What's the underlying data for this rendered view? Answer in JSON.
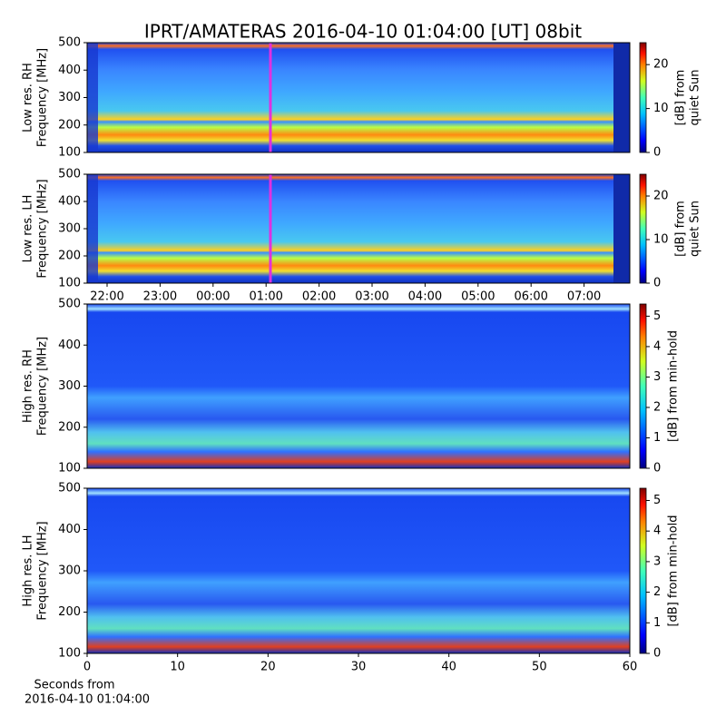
{
  "chart_data": [
    {
      "type": "heatmap",
      "title": "IPRT/AMATERAS 2016-04-10 01:04:00 [UT]   08bit",
      "ylabel": [
        "Low res. RH",
        "Frequency [MHz]"
      ],
      "ylim": [
        100,
        500
      ],
      "yticks": [
        100,
        200,
        300,
        400,
        500
      ],
      "colorbar_label": [
        "[dB] from",
        "quiet Sun"
      ],
      "clim": [
        0,
        25
      ],
      "cticks": [
        0,
        10,
        20
      ]
    },
    {
      "type": "heatmap",
      "ylabel": [
        "Low res. LH",
        "Frequency [MHz]"
      ],
      "ylim": [
        100,
        500
      ],
      "yticks": [
        100,
        200,
        300,
        400,
        500
      ],
      "colorbar_label": [
        "[dB] from",
        "quiet Sun"
      ],
      "clim": [
        0,
        25
      ],
      "cticks": [
        0,
        10,
        20
      ],
      "categories": [
        "22:00",
        "23:00",
        "00:00",
        "01:00",
        "02:00",
        "03:00",
        "04:00",
        "05:00",
        "06:00",
        "07:00"
      ]
    },
    {
      "type": "heatmap",
      "ylabel": [
        "High res. RH",
        "Frequency [MHz]"
      ],
      "ylim": [
        100,
        500
      ],
      "yticks": [
        100,
        200,
        300,
        400,
        500
      ],
      "colorbar_label": [
        "[dB] from min-hold"
      ],
      "clim": [
        0,
        5.4
      ],
      "cticks": [
        0,
        1,
        2,
        3,
        4,
        5
      ]
    },
    {
      "type": "heatmap",
      "ylabel": [
        "High res. LH",
        "Frequency [MHz]"
      ],
      "ylim": [
        100,
        500
      ],
      "yticks": [
        100,
        200,
        300,
        400,
        500
      ],
      "colorbar_label": [
        "[dB] from min-hold"
      ],
      "clim": [
        0,
        5.4
      ],
      "cticks": [
        0,
        1,
        2,
        3,
        4,
        5
      ],
      "xlabel": [
        "Seconds from",
        "2016-04-10 01:04:00"
      ],
      "xlim": [
        0,
        60
      ],
      "xticks": [
        0,
        10,
        20,
        30,
        40,
        50,
        60
      ]
    }
  ]
}
